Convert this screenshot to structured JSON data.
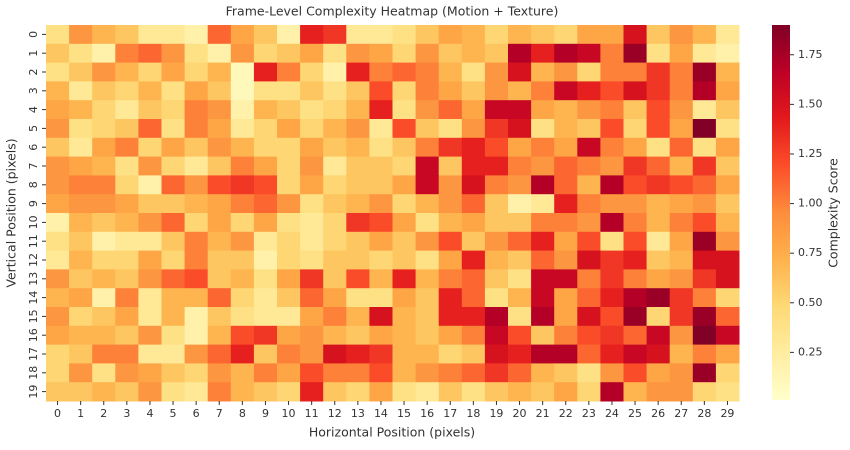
{
  "chart_data": {
    "type": "heatmap",
    "title": "Frame-Level Complexity Heatmap (Motion + Texture)",
    "x_label": "Horizontal Position (pixels)",
    "y_label": "Vertical Position (pixels)",
    "colorbar_label": "Complexity Score",
    "x_categories": [
      "0",
      "1",
      "2",
      "3",
      "4",
      "5",
      "6",
      "7",
      "8",
      "9",
      "10",
      "11",
      "12",
      "13",
      "14",
      "15",
      "16",
      "17",
      "18",
      "19",
      "20",
      "21",
      "22",
      "23",
      "24",
      "25",
      "26",
      "27",
      "28",
      "29"
    ],
    "y_categories": [
      "0",
      "1",
      "2",
      "3",
      "4",
      "5",
      "6",
      "7",
      "8",
      "9",
      "10",
      "11",
      "12",
      "13",
      "14",
      "15",
      "16",
      "17",
      "18",
      "19"
    ],
    "values": [
      [
        0.4,
        0.9,
        0.7,
        0.6,
        0.3,
        0.3,
        0.2,
        1.1,
        0.8,
        0.6,
        0.2,
        1.4,
        1.3,
        0.3,
        0.3,
        0.4,
        0.6,
        0.8,
        0.7,
        0.5,
        0.7,
        0.6,
        0.5,
        0.8,
        0.8,
        1.5,
        0.6,
        0.9,
        0.7,
        0.3
      ],
      [
        0.6,
        0.4,
        0.2,
        1.0,
        1.1,
        0.9,
        0.4,
        0.2,
        0.9,
        0.5,
        0.6,
        0.8,
        0.4,
        0.9,
        0.8,
        0.5,
        0.9,
        0.6,
        0.7,
        0.6,
        1.7,
        1.4,
        1.7,
        1.6,
        1.0,
        1.8,
        0.4,
        0.8,
        0.3,
        0.2
      ],
      [
        0.4,
        0.6,
        0.9,
        0.7,
        0.5,
        0.8,
        0.5,
        0.7,
        0.1,
        1.4,
        1.0,
        0.5,
        0.2,
        1.4,
        1.0,
        1.1,
        1.0,
        0.7,
        0.4,
        0.9,
        1.5,
        0.7,
        0.9,
        0.5,
        1.0,
        1.0,
        1.3,
        1.0,
        1.8,
        0.7
      ],
      [
        0.7,
        0.3,
        0.6,
        0.5,
        0.7,
        0.4,
        0.8,
        0.6,
        0.1,
        0.4,
        0.4,
        0.6,
        0.4,
        0.6,
        1.2,
        0.5,
        1.0,
        0.8,
        0.6,
        0.9,
        0.7,
        1.0,
        1.6,
        1.4,
        1.2,
        1.5,
        1.3,
        1.0,
        1.7,
        0.8
      ],
      [
        0.8,
        0.7,
        0.5,
        0.3,
        0.6,
        0.5,
        1.0,
        0.9,
        0.2,
        0.7,
        0.6,
        0.4,
        0.5,
        0.7,
        1.4,
        0.4,
        0.9,
        1.1,
        0.8,
        1.6,
        1.6,
        0.8,
        0.7,
        0.9,
        1.0,
        0.6,
        1.2,
        0.9,
        0.3,
        0.6
      ],
      [
        0.9,
        0.4,
        0.5,
        0.6,
        1.1,
        0.4,
        1.0,
        0.8,
        0.3,
        0.5,
        0.8,
        0.5,
        0.7,
        0.9,
        0.3,
        1.2,
        0.6,
        0.4,
        0.9,
        1.3,
        1.5,
        0.4,
        0.7,
        0.6,
        1.2,
        0.5,
        1.2,
        0.8,
        1.9,
        0.4
      ],
      [
        0.6,
        0.3,
        0.8,
        1.0,
        0.5,
        0.8,
        0.6,
        0.9,
        0.7,
        0.5,
        0.5,
        0.8,
        0.6,
        0.7,
        0.4,
        0.6,
        1.0,
        1.3,
        1.4,
        1.2,
        0.8,
        1.0,
        0.8,
        1.6,
        1.0,
        0.8,
        0.4,
        1.1,
        0.4,
        0.8
      ],
      [
        0.9,
        0.8,
        0.7,
        0.4,
        0.9,
        0.5,
        0.3,
        0.6,
        1.0,
        0.8,
        0.5,
        0.9,
        0.3,
        0.6,
        0.6,
        0.5,
        1.6,
        0.6,
        1.4,
        1.4,
        1.0,
        0.9,
        1.1,
        1.0,
        0.9,
        1.3,
        1.1,
        0.7,
        1.3,
        0.6
      ],
      [
        0.9,
        1.0,
        1.0,
        0.5,
        0.2,
        1.1,
        0.9,
        1.2,
        1.3,
        1.2,
        0.5,
        0.8,
        0.5,
        0.6,
        0.6,
        0.8,
        1.6,
        0.9,
        1.5,
        1.0,
        0.9,
        1.7,
        1.1,
        0.7,
        1.7,
        1.2,
        1.3,
        1.2,
        1.1,
        0.8
      ],
      [
        0.8,
        0.9,
        0.9,
        0.8,
        0.6,
        0.6,
        0.7,
        0.8,
        1.0,
        1.1,
        0.9,
        0.4,
        0.6,
        0.7,
        0.9,
        0.5,
        0.7,
        0.9,
        1.1,
        0.6,
        0.2,
        0.3,
        1.4,
        1.0,
        0.9,
        0.9,
        0.7,
        0.8,
        0.9,
        0.6
      ],
      [
        0.2,
        0.7,
        0.6,
        0.7,
        0.9,
        1.1,
        0.5,
        0.8,
        0.5,
        0.8,
        0.4,
        0.3,
        0.5,
        1.3,
        1.2,
        0.8,
        0.4,
        0.7,
        0.8,
        0.6,
        0.6,
        1.0,
        1.0,
        0.9,
        1.7,
        1.0,
        0.7,
        1.0,
        1.2,
        0.7
      ],
      [
        0.4,
        0.6,
        0.2,
        0.3,
        0.3,
        0.6,
        1.0,
        0.7,
        0.9,
        0.3,
        0.5,
        0.3,
        0.5,
        0.6,
        0.8,
        0.6,
        0.9,
        1.2,
        0.6,
        0.9,
        1.1,
        1.4,
        0.8,
        1.2,
        0.4,
        1.2,
        0.3,
        0.8,
        1.8,
        0.9
      ],
      [
        0.3,
        0.7,
        0.5,
        0.5,
        0.8,
        0.5,
        1.0,
        0.6,
        0.6,
        0.2,
        0.5,
        0.4,
        0.6,
        0.6,
        0.5,
        0.6,
        0.4,
        0.8,
        1.4,
        0.7,
        0.6,
        1.1,
        0.9,
        1.5,
        1.3,
        1.4,
        0.6,
        0.7,
        1.5,
        1.5
      ],
      [
        0.9,
        0.6,
        0.7,
        0.6,
        0.9,
        1.1,
        1.2,
        0.6,
        0.7,
        0.4,
        0.8,
        1.3,
        0.6,
        1.2,
        0.7,
        1.4,
        0.7,
        1.0,
        1.1,
        0.6,
        0.4,
        1.6,
        1.6,
        1.0,
        1.3,
        1.0,
        0.8,
        0.9,
        1.3,
        1.5
      ],
      [
        0.7,
        0.8,
        0.2,
        1.0,
        0.3,
        0.7,
        0.7,
        1.1,
        0.5,
        0.3,
        0.6,
        1.1,
        0.8,
        0.4,
        0.4,
        0.8,
        0.6,
        1.4,
        1.1,
        0.4,
        0.7,
        1.6,
        0.8,
        1.1,
        1.4,
        1.7,
        1.8,
        1.3,
        1.0,
        0.5
      ],
      [
        0.9,
        0.5,
        0.6,
        0.8,
        0.3,
        0.7,
        0.2,
        0.6,
        0.4,
        0.3,
        0.3,
        0.8,
        1.0,
        0.7,
        1.5,
        0.7,
        0.6,
        1.4,
        1.4,
        1.7,
        0.4,
        1.7,
        0.8,
        1.5,
        1.2,
        1.8,
        0.5,
        1.3,
        1.8,
        1.1
      ],
      [
        0.8,
        0.7,
        0.7,
        0.6,
        0.9,
        0.4,
        0.2,
        0.7,
        1.2,
        1.3,
        0.8,
        0.9,
        0.7,
        0.6,
        0.8,
        0.7,
        0.6,
        0.8,
        1.0,
        1.6,
        1.2,
        0.6,
        1.0,
        1.2,
        1.3,
        1.1,
        1.6,
        0.9,
        1.9,
        1.6
      ],
      [
        0.5,
        0.6,
        1.0,
        1.0,
        0.3,
        0.3,
        0.9,
        1.1,
        1.4,
        0.6,
        1.0,
        0.9,
        1.5,
        1.4,
        1.3,
        0.7,
        0.7,
        0.5,
        0.6,
        1.5,
        1.4,
        1.7,
        1.7,
        1.1,
        1.4,
        1.6,
        1.5,
        0.7,
        1.0,
        0.8
      ],
      [
        0.5,
        0.9,
        0.4,
        0.9,
        0.8,
        0.6,
        0.5,
        0.9,
        0.7,
        1.0,
        0.8,
        1.2,
        1.0,
        1.0,
        1.2,
        0.7,
        0.9,
        1.0,
        1.1,
        1.3,
        1.1,
        0.7,
        0.6,
        0.4,
        0.9,
        1.2,
        0.8,
        0.9,
        1.8,
        0.5
      ],
      [
        0.6,
        0.6,
        0.7,
        0.6,
        0.9,
        0.4,
        0.3,
        1.0,
        0.7,
        0.6,
        0.5,
        1.4,
        0.6,
        0.5,
        0.8,
        0.4,
        0.3,
        0.6,
        0.4,
        0.6,
        0.7,
        0.6,
        0.8,
        0.5,
        1.7,
        0.7,
        0.9,
        0.9,
        0.5,
        0.4
      ]
    ],
    "vlim": [
      0.01,
      1.9
    ],
    "colorbar_ticks": [
      0.25,
      {
        "value": 0.5,
        "label": "0.50"
      },
      0.75,
      {
        "value": 1.0,
        "label": "1.00"
      },
      1.25,
      {
        "value": 1.5,
        "label": "1.50"
      },
      1.75
    ],
    "colorscale": [
      "#ffffcc",
      "#ffeda0",
      "#fed976",
      "#feb24c",
      "#fd8d3c",
      "#fc4e2a",
      "#e31a1c",
      "#bd0026",
      "#800026"
    ]
  }
}
